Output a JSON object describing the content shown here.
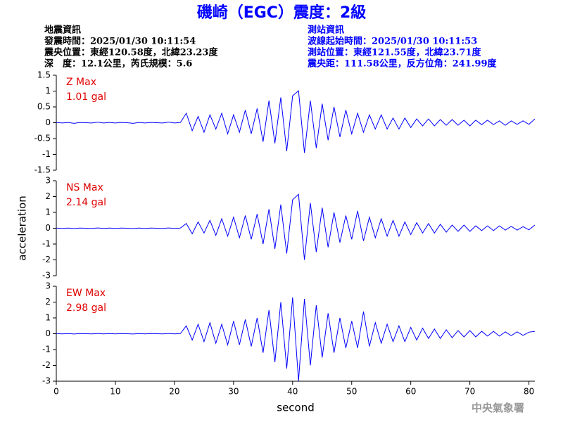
{
  "header": {
    "title": "磯崎（EGC）震度：2級",
    "event": [
      "地震資訊",
      "發震時間：2025/01/30 10:11:54",
      "震央位置：東經120.58度，北緯23.23度",
      "深　度：12.1公里，芮氏規模：5.6"
    ],
    "station": [
      "測站資訊",
      "波線起始時間：2025/01/30 10:11:53",
      "測站位置：東經121.55度，北緯23.71度",
      "震央距：111.58公里，反方位角：241.99度"
    ]
  },
  "footer": "中央氣象署",
  "chart_data": [
    {
      "type": "line",
      "annotation": [
        "Z Max",
        "1.01 gal"
      ],
      "color": "#0000ff",
      "xlim": [
        0,
        81
      ],
      "ylim": [
        -1.5,
        1.5
      ],
      "yticks": [
        -1.5,
        -1,
        -0.5,
        0,
        0.5,
        1,
        1.5
      ],
      "x": [
        0,
        1,
        2,
        3,
        4,
        5,
        6,
        7,
        8,
        9,
        10,
        11,
        12,
        13,
        14,
        15,
        16,
        17,
        18,
        19,
        20,
        21,
        22,
        23,
        24,
        25,
        26,
        27,
        28,
        29,
        30,
        31,
        32,
        33,
        34,
        35,
        36,
        37,
        38,
        39,
        40,
        41,
        42,
        43,
        44,
        45,
        46,
        47,
        48,
        49,
        50,
        51,
        52,
        53,
        54,
        55,
        56,
        57,
        58,
        59,
        60,
        61,
        62,
        63,
        64,
        65,
        66,
        67,
        68,
        69,
        70,
        71,
        72,
        73,
        74,
        75,
        76,
        77,
        78,
        79,
        80,
        81
      ],
      "values": [
        0.01,
        -0.01,
        0.01,
        -0.02,
        0.01,
        0,
        -0.01,
        0.02,
        -0.01,
        0.01,
        -0.01,
        0.01,
        0,
        -0.02,
        0.01,
        -0.01,
        0.01,
        0,
        -0.01,
        0.02,
        -0.01,
        0.01,
        0.3,
        -0.25,
        0.2,
        -0.3,
        0.25,
        -0.2,
        0.3,
        -0.35,
        0.25,
        -0.3,
        0.4,
        -0.35,
        0.45,
        -0.6,
        0.7,
        -0.65,
        0.8,
        -0.9,
        0.85,
        1.01,
        -0.95,
        0.7,
        -0.8,
        0.6,
        -0.55,
        0.5,
        -0.45,
        0.4,
        -0.35,
        0.3,
        -0.3,
        0.25,
        -0.2,
        0.25,
        -0.2,
        0.15,
        -0.2,
        0.15,
        -0.15,
        0.12,
        -0.1,
        0.12,
        -0.1,
        0.1,
        -0.08,
        0.1,
        -0.08,
        0.08,
        -0.1,
        0.08,
        -0.06,
        0.08,
        -0.06,
        0.06,
        -0.08,
        0.06,
        -0.05,
        0.06,
        -0.05,
        0.12
      ]
    },
    {
      "type": "line",
      "annotation": [
        "NS Max",
        "2.14 gal"
      ],
      "color": "#0000ff",
      "ylabel": "acceleration",
      "xlim": [
        0,
        81
      ],
      "ylim": [
        -3,
        3
      ],
      "yticks": [
        -3,
        -2,
        -1,
        0,
        1,
        2,
        3
      ],
      "x": [
        0,
        1,
        2,
        3,
        4,
        5,
        6,
        7,
        8,
        9,
        10,
        11,
        12,
        13,
        14,
        15,
        16,
        17,
        18,
        19,
        20,
        21,
        22,
        23,
        24,
        25,
        26,
        27,
        28,
        29,
        30,
        31,
        32,
        33,
        34,
        35,
        36,
        37,
        38,
        39,
        40,
        41,
        42,
        43,
        44,
        45,
        46,
        47,
        48,
        49,
        50,
        51,
        52,
        53,
        54,
        55,
        56,
        57,
        58,
        59,
        60,
        61,
        62,
        63,
        64,
        65,
        66,
        67,
        68,
        69,
        70,
        71,
        72,
        73,
        74,
        75,
        76,
        77,
        78,
        79,
        80,
        81
      ],
      "values": [
        0.01,
        -0.01,
        0.01,
        -0.02,
        0.01,
        0,
        -0.01,
        0.02,
        -0.01,
        0.01,
        -0.01,
        0.01,
        0,
        -0.02,
        0.01,
        -0.01,
        0.01,
        0,
        -0.01,
        0.02,
        -0.01,
        0.01,
        0.3,
        -0.35,
        0.4,
        -0.3,
        0.5,
        -0.45,
        0.6,
        -0.5,
        0.7,
        -0.6,
        0.8,
        -0.7,
        0.9,
        -1.0,
        1.2,
        -1.3,
        1.5,
        -1.6,
        1.8,
        2.14,
        -2.0,
        1.6,
        -1.5,
        1.3,
        -1.2,
        1.0,
        -0.9,
        0.8,
        -0.7,
        1.1,
        -0.8,
        0.7,
        -0.6,
        0.6,
        -0.5,
        0.5,
        -0.5,
        0.4,
        -0.4,
        0.35,
        -0.3,
        0.3,
        -0.3,
        0.25,
        -0.25,
        0.2,
        -0.2,
        0.2,
        -0.2,
        0.15,
        -0.15,
        0.15,
        -0.15,
        0.15,
        -0.12,
        0.12,
        -0.12,
        0.1,
        -0.1,
        0.2
      ]
    },
    {
      "type": "line",
      "annotation": [
        "EW Max",
        "2.98 gal"
      ],
      "color": "#0000ff",
      "xlabel": "second",
      "xlim": [
        0,
        81
      ],
      "xticks": [
        0,
        10,
        20,
        30,
        40,
        50,
        60,
        70,
        80
      ],
      "ylim": [
        -3,
        3
      ],
      "yticks": [
        -3,
        -2,
        -1,
        0,
        1,
        2,
        3
      ],
      "x": [
        0,
        1,
        2,
        3,
        4,
        5,
        6,
        7,
        8,
        9,
        10,
        11,
        12,
        13,
        14,
        15,
        16,
        17,
        18,
        19,
        20,
        21,
        22,
        23,
        24,
        25,
        26,
        27,
        28,
        29,
        30,
        31,
        32,
        33,
        34,
        35,
        36,
        37,
        38,
        39,
        40,
        41,
        42,
        43,
        44,
        45,
        46,
        47,
        48,
        49,
        50,
        51,
        52,
        53,
        54,
        55,
        56,
        57,
        58,
        59,
        60,
        61,
        62,
        63,
        64,
        65,
        66,
        67,
        68,
        69,
        70,
        71,
        72,
        73,
        74,
        75,
        76,
        77,
        78,
        79,
        80,
        81
      ],
      "values": [
        0.01,
        -0.01,
        0.01,
        -0.02,
        0.01,
        0,
        -0.01,
        0.02,
        -0.01,
        0.01,
        -0.01,
        0.01,
        0,
        -0.02,
        0.01,
        -0.01,
        0.01,
        0,
        -0.01,
        0.02,
        -0.01,
        0.01,
        0.5,
        -0.4,
        0.6,
        -0.5,
        0.7,
        -0.6,
        0.6,
        -0.7,
        0.8,
        -0.7,
        0.9,
        -0.8,
        1.0,
        -1.2,
        1.5,
        -1.8,
        2.0,
        -2.2,
        2.3,
        -2.98,
        2.2,
        -2.0,
        1.8,
        -1.5,
        1.3,
        -1.2,
        1.0,
        -0.9,
        0.8,
        -0.9,
        1.4,
        -0.8,
        0.7,
        -0.6,
        0.6,
        -0.5,
        0.5,
        -0.5,
        0.4,
        -0.4,
        0.35,
        -0.3,
        0.3,
        -0.3,
        0.25,
        -0.25,
        0.2,
        -0.2,
        0.2,
        -0.2,
        0.15,
        -0.15,
        0.15,
        -0.15,
        0.12,
        -0.12,
        0.12,
        -0.1,
        0.1,
        0.15
      ]
    }
  ]
}
